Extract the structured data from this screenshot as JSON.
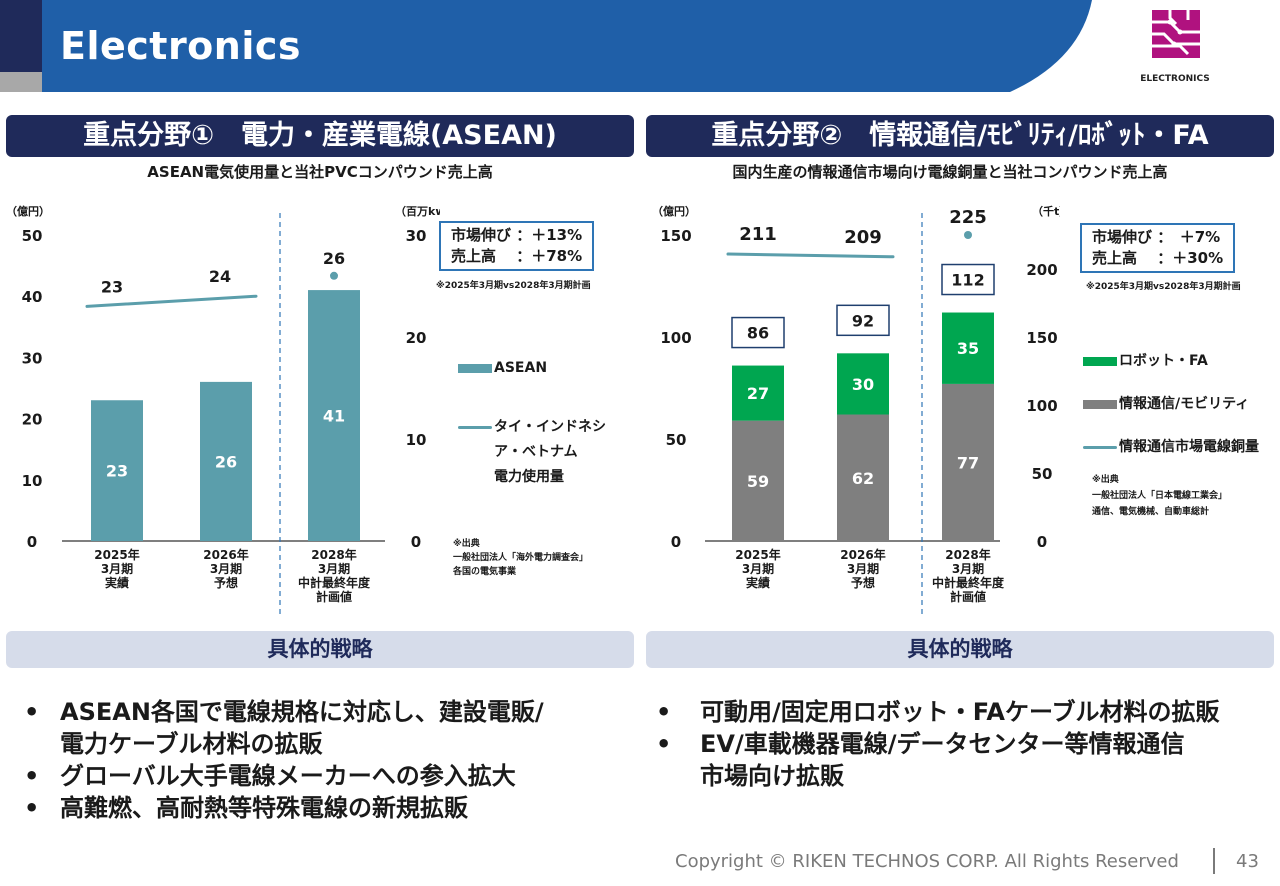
{
  "header": {
    "title": "Electronics",
    "logo_text": "ELECTRONICS",
    "band_color": "#1f5fa8"
  },
  "left": {
    "section_title": "重点分野①　電力・産業電線(ASEAN)",
    "subtitle": "ASEAN電気使用量と当社PVCコンパウンド売上高",
    "callout_line1": "市場伸び ：＋13%",
    "callout_line2": "売上高　 ：＋78%",
    "callout_note": "※2025年3月期vs2028年3月期計画",
    "legend_bar": "ASEAN",
    "legend_line": [
      "タイ・インドネシ",
      "ア・ベトナム",
      "電力使用量"
    ],
    "source_note": [
      "※出典",
      "一般社団法人「海外電力調査会」",
      "各国の電気事業"
    ]
  },
  "right": {
    "section_title": "重点分野②　情報通信/ﾓﾋﾞﾘﾃｨ/ﾛﾎﾞｯﾄ・FA",
    "subtitle": "国内生産の情報通信市場向け電線銅量と当社コンパウンド売上高",
    "callout_line1": "市場伸び ：　＋7%",
    "callout_line2": "売上高　 ：＋30%",
    "callout_note": "※2025年3月期vs2028年3月期計画",
    "legend_robot": "ロボット・FA",
    "legend_info": "情報通信/モビリティ",
    "legend_line": "情報通信市場電線銅量",
    "source_note": [
      "※出典",
      "一般社団法人「日本電線工業会」",
      "通信、電気機械、自動車総計"
    ]
  },
  "strategy": {
    "left_label": "具体的戦略",
    "right_label": "具体的戦略",
    "left_bullets": [
      [
        "ASEAN各国で電線規格に対応し、建設電販/",
        "電力ケーブル材料の拡販"
      ],
      [
        "グローバル大手電線メーカーへの参入拡大"
      ],
      [
        "高難燃、高耐熱等特殊電線の新規拡販"
      ]
    ],
    "right_bullets": [
      [
        "可動用/固定用ロボット・FAケーブル材料の拡販"
      ],
      [
        "EV/車載機器電線/データセンター等情報通信",
        "市場向け拡販"
      ]
    ]
  },
  "footer": {
    "copyright": "Copyright © RIKEN TECHNOS CORP. All Rights Reserved",
    "page": "43"
  },
  "chart_data": [
    {
      "type": "bar",
      "categories": [
        [
          "2025年",
          "3月期",
          "実績"
        ],
        [
          "2026年",
          "3月期",
          "予想"
        ],
        [
          "2028年",
          "3月期",
          "中計最終年度",
          "計画値"
        ]
      ],
      "series": [
        {
          "name": "ASEAN",
          "kind": "bar",
          "axis": "left",
          "values": [
            23,
            26,
            41
          ],
          "color": "#5b9eab"
        },
        {
          "name": "タイ・インドネシア・ベトナム電力使用量",
          "kind": "line",
          "axis": "right",
          "values": [
            23,
            24,
            26
          ],
          "color": "#5b9eab"
        }
      ],
      "ylabel": "（億円）",
      "y2label": "（百万kw）",
      "ylim": [
        0,
        50
      ],
      "yticks": [
        0,
        10,
        20,
        30,
        40,
        50
      ],
      "y2lim": [
        0,
        30
      ],
      "y2ticks": [
        0,
        10,
        20,
        30
      ]
    },
    {
      "type": "bar",
      "stacked": true,
      "categories": [
        [
          "2025年",
          "3月期",
          "実績"
        ],
        [
          "2026年",
          "3月期",
          "予想"
        ],
        [
          "2028年",
          "3月期",
          "中計最終年度",
          "計画値"
        ]
      ],
      "series": [
        {
          "name": "情報通信/モビリティ",
          "kind": "bar",
          "axis": "left",
          "values": [
            59,
            62,
            77
          ],
          "color": "#7f7f7f"
        },
        {
          "name": "ロボット・FA",
          "kind": "bar",
          "axis": "left",
          "values": [
            27,
            30,
            35
          ],
          "color": "#00a650"
        },
        {
          "name": "情報通信市場電線銅量",
          "kind": "line",
          "axis": "right",
          "values": [
            211,
            209,
            225
          ],
          "color": "#5b9eab"
        }
      ],
      "totals": [
        86,
        92,
        112
      ],
      "ylabel": "（億円）",
      "y2label": "（千t）",
      "ylim": [
        0,
        150
      ],
      "yticks": [
        0,
        50,
        100,
        150
      ],
      "y2lim": [
        0,
        225
      ],
      "y2ticks": [
        0,
        50,
        100,
        150,
        200
      ]
    }
  ]
}
